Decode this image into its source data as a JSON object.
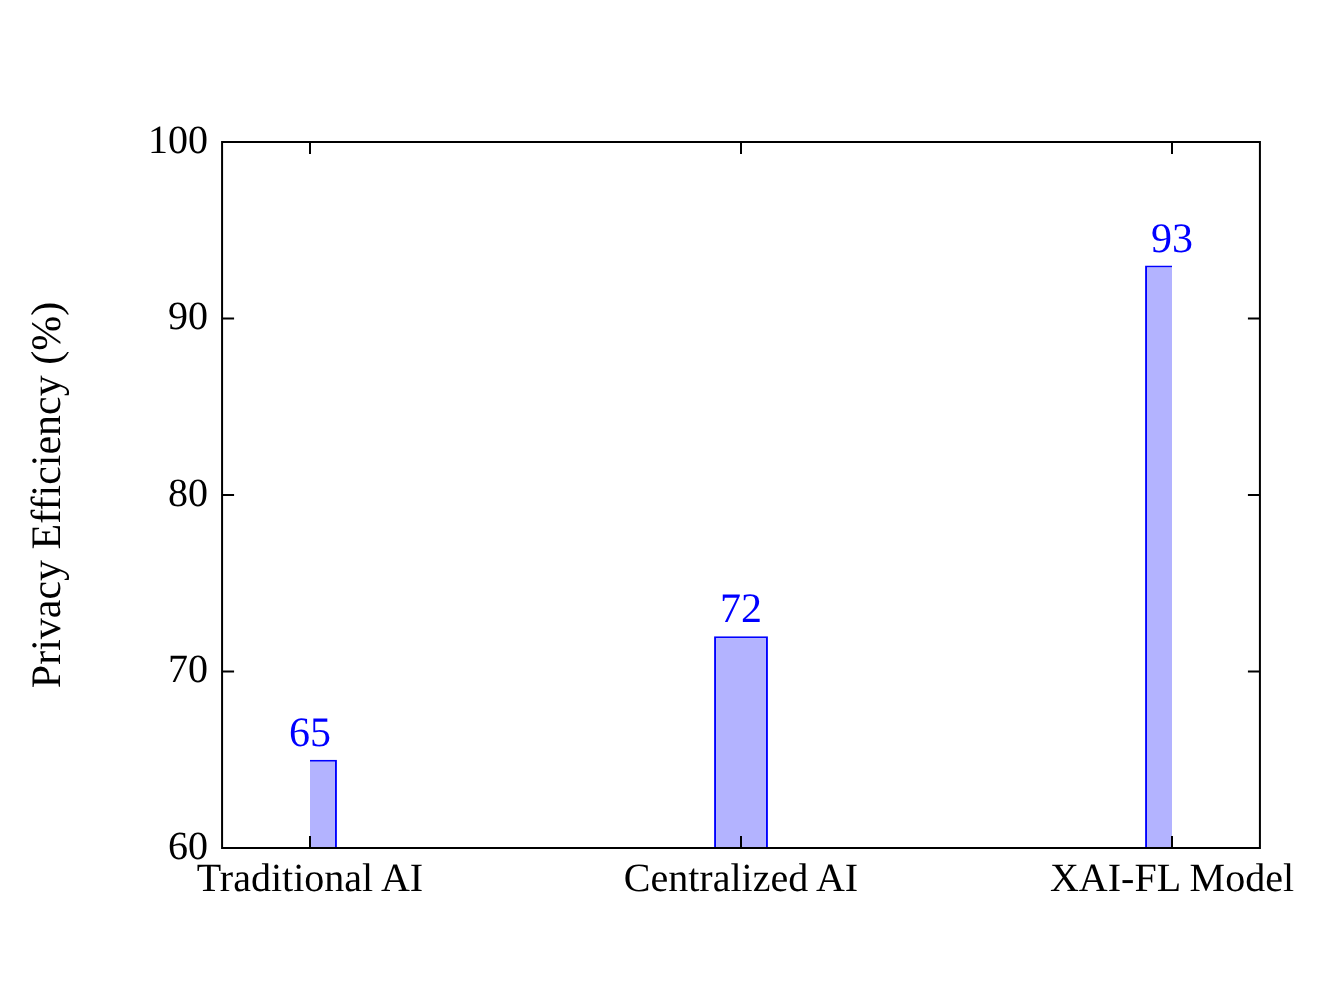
{
  "chart_data": {
    "type": "bar",
    "ylabel": "Privacy Efficiency (%)",
    "categories": [
      "Traditional AI",
      "Centralized AI",
      "XAI-FL Model"
    ],
    "values": [
      65,
      72,
      93
    ],
    "color": "#b3b3ff",
    "ylim": [
      60,
      100
    ],
    "yticks": [
      60,
      70,
      80,
      90,
      100
    ],
    "data_labels": true
  }
}
